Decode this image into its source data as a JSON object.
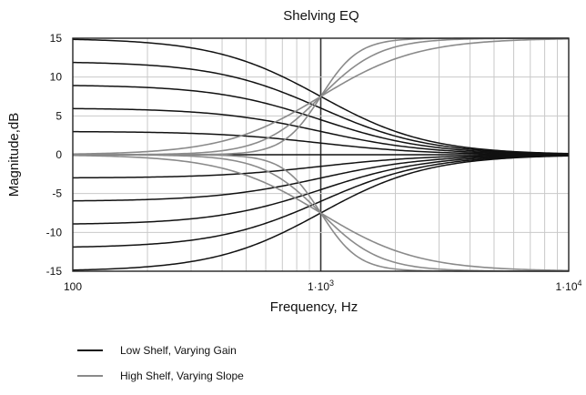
{
  "chart_data": {
    "type": "line",
    "title": "Shelving EQ",
    "xlabel": "Frequency, Hz",
    "ylabel": "Magnitude,dB",
    "x_scale": "log",
    "xlim": [
      100,
      10000
    ],
    "ylim": [
      -15,
      15
    ],
    "x_ticks": [
      {
        "value": 100,
        "label": "100"
      },
      {
        "value": 1000,
        "label": "1·10",
        "sup": "3"
      },
      {
        "value": 10000,
        "label": "1·10",
        "sup": "4"
      }
    ],
    "y_ticks": [
      15,
      10,
      5,
      0,
      -5,
      -10,
      -15
    ],
    "grid": true,
    "legend": {
      "position": "bottom-left",
      "entries": [
        {
          "label": "Low Shelf, Varying Gain",
          "color": "#111111"
        },
        {
          "label": "High Shelf, Varying Slope",
          "color": "#8a8a8a"
        }
      ]
    },
    "low_shelf": {
      "color": "#111111",
      "corner_hz": 1000,
      "gains_db": [
        15,
        12,
        9,
        6,
        3,
        -3,
        -6,
        -9,
        -12,
        -15
      ]
    },
    "high_shelf": {
      "color": "#8a8a8a",
      "corner_hz": 1000,
      "gains_db": [
        15,
        -15
      ],
      "slopes": [
        0.35,
        0.55,
        0.9
      ]
    }
  }
}
